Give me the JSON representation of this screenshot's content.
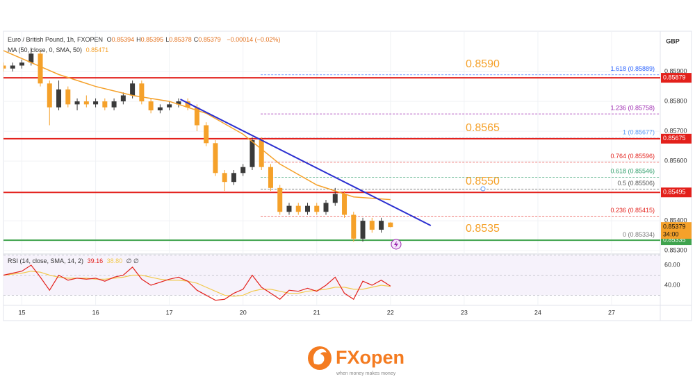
{
  "chart_data": {
    "type": "candlestick",
    "title": "Euro / British Pound, 1h, FXOPEN",
    "ohlc_legend": [
      {
        "label": "O",
        "value": 0.85394
      },
      {
        "label": "H",
        "value": 0.85395
      },
      {
        "label": "L",
        "value": 0.85378
      },
      {
        "label": "C",
        "value": 0.85379
      }
    ],
    "change": "−0.00014 (−0.02%)",
    "currency": "GBP",
    "x": [
      -0.25,
      -0.125,
      0,
      0.125,
      0.25,
      0.375,
      0.5,
      0.625,
      0.75,
      0.875,
      1,
      1.125,
      1.25,
      1.375,
      1.5,
      1.625,
      1.75,
      1.875,
      2,
      2.125,
      2.25,
      2.375,
      2.5,
      2.625,
      2.75,
      2.875,
      3,
      3.125,
      3.25,
      3.375,
      3.5,
      3.625,
      3.75,
      3.875,
      4,
      4.125,
      4.25,
      4.375,
      4.5,
      4.625,
      4.75,
      4.875,
      5
    ],
    "open": [
      0.8592,
      0.8591,
      0.8592,
      0.8593,
      0.8596,
      0.8586,
      0.8578,
      0.8584,
      0.8579,
      0.858,
      0.8579,
      0.858,
      0.8578,
      0.858,
      0.8582,
      0.8586,
      0.858,
      0.8577,
      0.8578,
      0.8579,
      0.858,
      0.8578,
      0.8572,
      0.8566,
      0.8556,
      0.8553,
      0.8556,
      0.8558,
      0.8567,
      0.8558,
      0.8551,
      0.8543,
      0.8545,
      0.8543,
      0.8545,
      0.8543,
      0.8546,
      0.8549,
      0.8542,
      0.8534,
      0.854,
      0.8537,
      0.85394
    ],
    "high": [
      0.8593,
      0.8593,
      0.8594,
      0.8598,
      0.8597,
      0.8587,
      0.8587,
      0.8585,
      0.8581,
      0.8582,
      0.8581,
      0.8581,
      0.8581,
      0.8583,
      0.8587,
      0.8587,
      0.8581,
      0.8579,
      0.858,
      0.8581,
      0.8581,
      0.8579,
      0.8573,
      0.8567,
      0.8557,
      0.8557,
      0.8559,
      0.8568,
      0.8568,
      0.8559,
      0.8552,
      0.8546,
      0.8546,
      0.8546,
      0.8546,
      0.8547,
      0.8551,
      0.855,
      0.8543,
      0.8541,
      0.8541,
      0.8541,
      0.85395
    ],
    "low": [
      0.859,
      0.859,
      0.8591,
      0.8592,
      0.8585,
      0.8572,
      0.8577,
      0.8578,
      0.8577,
      0.8578,
      0.8578,
      0.8577,
      0.8577,
      0.8579,
      0.8581,
      0.8579,
      0.8576,
      0.8576,
      0.8577,
      0.8578,
      0.8577,
      0.857,
      0.8565,
      0.8555,
      0.855,
      0.8552,
      0.8555,
      0.8557,
      0.8557,
      0.855,
      0.8542,
      0.8542,
      0.8542,
      0.8542,
      0.8542,
      0.8542,
      0.8545,
      0.8541,
      0.8533,
      0.8533,
      0.8536,
      0.8536,
      0.85378
    ],
    "close": [
      0.8591,
      0.8592,
      0.8593,
      0.8596,
      0.8586,
      0.8578,
      0.8584,
      0.8579,
      0.858,
      0.8579,
      0.858,
      0.8578,
      0.858,
      0.8582,
      0.8586,
      0.858,
      0.8577,
      0.8578,
      0.8579,
      0.858,
      0.8578,
      0.8572,
      0.8566,
      0.8556,
      0.8553,
      0.8556,
      0.8558,
      0.8567,
      0.8558,
      0.8551,
      0.8543,
      0.8545,
      0.8543,
      0.8545,
      0.8543,
      0.8546,
      0.8549,
      0.8542,
      0.8534,
      0.854,
      0.8537,
      0.854,
      0.85379
    ],
    "up_color": "#3a3a3a",
    "down_color": "#f5a12a",
    "xlim": [
      -0.25,
      8.66
    ],
    "xticks": [
      {
        "value": 0,
        "label": "15"
      },
      {
        "value": 1,
        "label": "16"
      },
      {
        "value": 2,
        "label": "17"
      },
      {
        "value": 3,
        "label": "20"
      },
      {
        "value": 4,
        "label": "21"
      },
      {
        "value": 5,
        "label": "22"
      },
      {
        "value": 6,
        "label": "23"
      },
      {
        "value": 7,
        "label": "24"
      },
      {
        "value": 8,
        "label": "27"
      }
    ],
    "ylim": [
      0.85291,
      0.86035
    ],
    "yticks": [
      {
        "value": 0.853,
        "label": "0.85300"
      },
      {
        "value": 0.854,
        "label": "0.85400"
      },
      {
        "value": 0.856,
        "label": "0.85600"
      },
      {
        "value": 0.857,
        "label": "0.85700"
      },
      {
        "value": 0.858,
        "label": "0.85800"
      },
      {
        "value": 0.859,
        "label": "0.85900"
      }
    ],
    "grid": true,
    "ma": {
      "name": "MA (50, close, 0, SMA, 50)",
      "last": 0.85471,
      "color": "#f5a12a",
      "x": [
        -0.25,
        0.5,
        1,
        1.5,
        2,
        2.5,
        3,
        3.5,
        4,
        4.5,
        5
      ],
      "values": [
        0.8597,
        0.8589,
        0.8585,
        0.8582,
        0.858,
        0.8576,
        0.8569,
        0.8559,
        0.8552,
        0.8548,
        0.85471
      ]
    },
    "trendline": {
      "color": "#2b2fd0",
      "x": [
        2.15,
        5.547
      ],
      "values": [
        0.85807,
        0.85384
      ]
    },
    "levels": [
      {
        "value": 0.85879,
        "color": "#e3201b"
      },
      {
        "value": 0.85675,
        "color": "#e3201b"
      },
      {
        "value": 0.85495,
        "color": "#e3201b"
      },
      {
        "value": 0.85335,
        "color": "#3fa34d"
      }
    ],
    "annotations": [
      "0.8590",
      "0.8565",
      "0.8550",
      "0.8535"
    ],
    "annotation_color": "#f5a12a",
    "fib": {
      "x_start": 3.24,
      "levels": [
        {
          "label": "1.618 (0.85889)",
          "value": 0.85889,
          "color": "#2962ff"
        },
        {
          "label": "1.236 (0.85758)",
          "value": 0.85758,
          "color": "#9c27b0"
        },
        {
          "label": "1 (0.85677)",
          "value": 0.85677,
          "color": "#5b9cf6"
        },
        {
          "label": "0.764 (0.85596)",
          "value": 0.85596,
          "color": "#e3201b"
        },
        {
          "label": "0.618 (0.85546)",
          "value": 0.85546,
          "color": "#2e9e6a"
        },
        {
          "label": "0.5 (0.85506)",
          "value": 0.85506,
          "color": "#555555"
        },
        {
          "label": "0.236 (0.85415)",
          "value": 0.85415,
          "color": "#e3201b"
        },
        {
          "label": "0 (0.85334)",
          "value": 0.85334,
          "color": "#777777"
        }
      ]
    },
    "last_price": {
      "value": 0.85379,
      "countdown": "34:00",
      "color": "#f5a12a"
    },
    "rsi": {
      "name": "RSI (14, close, SMA, 14, 2)",
      "last_values": [
        39.16,
        38.8
      ],
      "last_labels": [
        "39.16",
        "38.80"
      ],
      "extra": "∅ ∅",
      "color": "#e3201b",
      "sma_color": "#f2c94c",
      "ylim": [
        23.4,
        69.7
      ],
      "yticks": [
        {
          "value": 40,
          "label": "40.00"
        },
        {
          "value": 60,
          "label": "60.00"
        }
      ],
      "bands": [
        30,
        50,
        70
      ],
      "values": [
        50,
        52,
        54,
        60,
        48,
        35,
        50,
        45,
        47,
        46,
        47,
        44,
        48,
        50,
        58,
        46,
        40,
        43,
        46,
        48,
        44,
        35,
        30,
        25,
        26,
        32,
        36,
        50,
        38,
        32,
        26,
        35,
        34,
        37,
        34,
        40,
        48,
        32,
        26,
        44,
        40,
        45,
        39.16
      ],
      "sma": [
        50,
        51,
        52,
        54,
        53,
        50,
        48,
        47,
        47,
        47,
        46,
        46,
        47,
        48,
        50,
        50,
        48,
        46,
        45,
        45,
        44,
        42,
        38,
        34,
        30,
        29,
        30,
        34,
        36,
        36,
        34,
        32,
        32,
        34,
        35,
        36,
        38,
        38,
        36,
        36,
        38,
        40,
        38.8
      ]
    }
  },
  "branding": {
    "name": "FXopen",
    "tagline": "when money makes money"
  }
}
